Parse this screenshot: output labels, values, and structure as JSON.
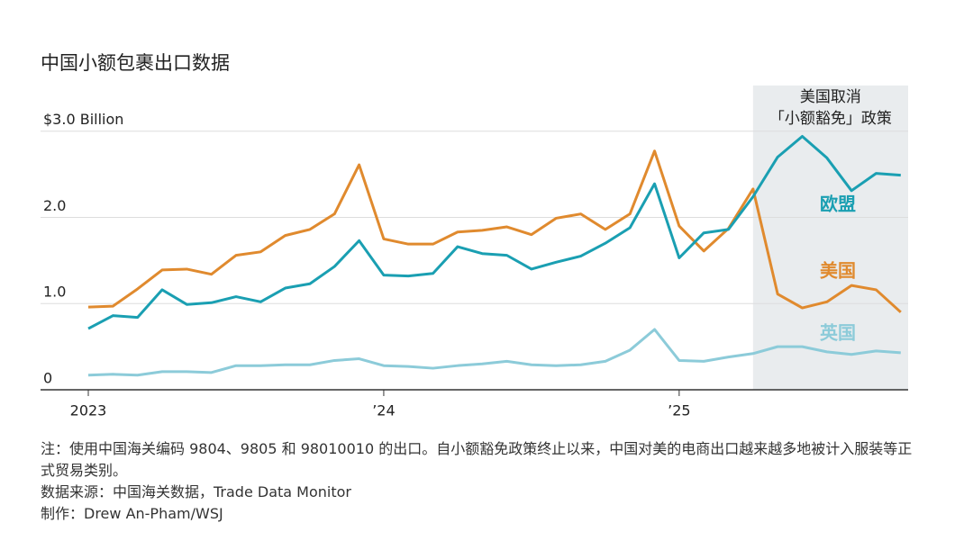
{
  "chart_data": {
    "type": "line",
    "title": "中国小额包裹出口数据",
    "x": [
      0,
      1,
      2,
      3,
      4,
      5,
      6,
      7,
      8,
      9,
      10,
      11,
      12,
      13,
      14,
      15,
      16,
      17,
      18,
      19,
      20,
      21,
      22,
      23,
      24,
      25,
      26,
      27,
      28,
      29,
      30,
      31,
      32,
      33
    ],
    "xlim": [
      -1.94,
      33.3
    ],
    "xticks": [
      {
        "value": 0,
        "label": "2023"
      },
      {
        "value": 12,
        "label": "’24"
      },
      {
        "value": 24,
        "label": "’25"
      }
    ],
    "ylim": [
      0,
      3.53
    ],
    "yticks": [
      0,
      {
        "value": 1,
        "label": "1.0"
      },
      {
        "value": 2,
        "label": "2.0"
      },
      {
        "value": 3,
        "label": "$3.0 Billion"
      }
    ],
    "grid": true,
    "shade_from": 27,
    "annotation": [
      "美国取消",
      "「小额豁免」政策"
    ],
    "series": [
      {
        "name": "美国",
        "color": "#e08a2e",
        "values": [
          0.96,
          0.97,
          1.17,
          1.39,
          1.4,
          1.34,
          1.56,
          1.6,
          1.79,
          1.86,
          2.04,
          2.61,
          1.75,
          1.69,
          1.69,
          1.83,
          1.85,
          1.89,
          1.8,
          1.99,
          2.04,
          1.86,
          2.04,
          2.77,
          1.9,
          1.61,
          1.87,
          2.33,
          1.11,
          0.95,
          1.02,
          1.21,
          1.16,
          0.9
        ]
      },
      {
        "name": "欧盟",
        "color": "#1a9fb2",
        "values": [
          0.71,
          0.86,
          0.84,
          1.16,
          0.99,
          1.01,
          1.08,
          1.02,
          1.18,
          1.23,
          1.43,
          1.73,
          1.33,
          1.32,
          1.35,
          1.66,
          1.58,
          1.56,
          1.4,
          1.48,
          1.55,
          1.7,
          1.88,
          2.39,
          1.53,
          1.82,
          1.86,
          2.24,
          2.7,
          2.94,
          2.69,
          2.31,
          2.51,
          2.49
        ]
      },
      {
        "name": "英国",
        "color": "#8ccbd9",
        "values": [
          0.17,
          0.18,
          0.17,
          0.21,
          0.21,
          0.2,
          0.28,
          0.28,
          0.29,
          0.29,
          0.34,
          0.36,
          0.28,
          0.27,
          0.25,
          0.28,
          0.3,
          0.33,
          0.29,
          0.28,
          0.29,
          0.33,
          0.46,
          0.7,
          0.34,
          0.33,
          0.38,
          0.42,
          0.5,
          0.5,
          0.44,
          0.41,
          0.45,
          0.43
        ]
      }
    ],
    "notes": [
      "注：使用中国海关编码 9804、9805 和 98010010 的出口。自小额豁免政策终止以来，中国对美的电商出口越来越多地被计入服装等正式贸易类别。",
      "数据来源：中国海关数据，Trade Data Monitor",
      "制作：Drew An-Pham/WSJ"
    ]
  }
}
